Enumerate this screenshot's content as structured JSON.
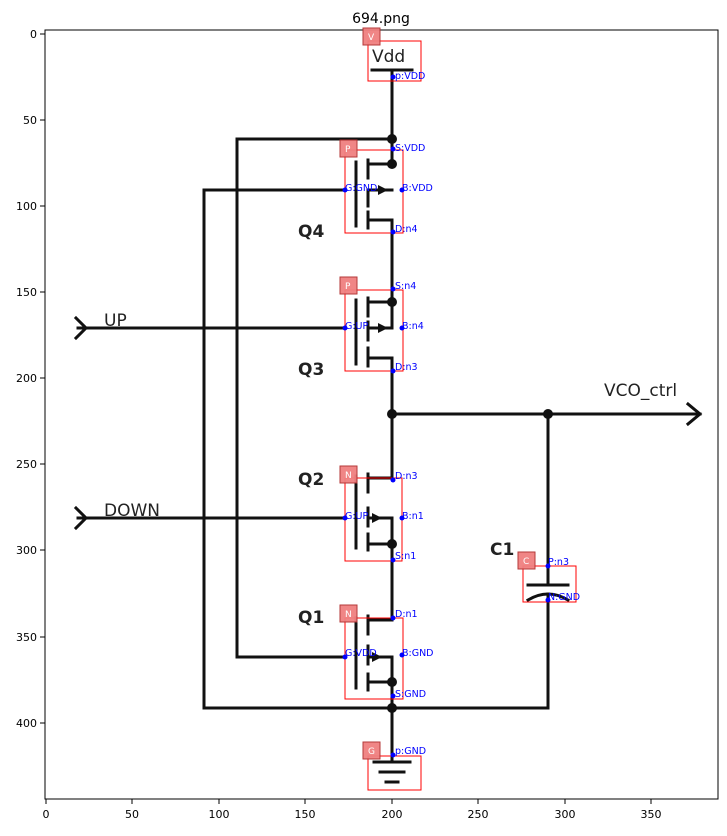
{
  "title": "694.png",
  "axes": {
    "x_ticks": [
      "0",
      "50",
      "100",
      "150",
      "200",
      "250",
      "300",
      "350"
    ],
    "y_ticks": [
      "0",
      "50",
      "100",
      "150",
      "200",
      "250",
      "300",
      "350",
      "400"
    ]
  },
  "labels": {
    "vdd": "Vdd",
    "q4": "Q4",
    "q3": "Q3",
    "q2": "Q2",
    "q1": "Q1",
    "c1": "C1",
    "up": "UP",
    "down": "DOWN",
    "vco": "VCO_ctrl"
  },
  "components": [
    {
      "id": "vdd",
      "tag": "V",
      "pins": [
        "p:VDD"
      ]
    },
    {
      "id": "q4",
      "tag": "P",
      "pins": [
        "S:VDD",
        "G:GND",
        "B:VDD",
        "D:n4"
      ]
    },
    {
      "id": "q3",
      "tag": "P",
      "pins": [
        "S:n4",
        "G:UP",
        "B:n4",
        "D:n3"
      ]
    },
    {
      "id": "q2",
      "tag": "N",
      "pins": [
        "D:n3",
        "G:UP",
        "B:n1",
        "S:n1"
      ]
    },
    {
      "id": "q1",
      "tag": "N",
      "pins": [
        "D:n1",
        "G:VDD",
        "B:GND",
        "S:GND"
      ]
    },
    {
      "id": "c1",
      "tag": "C",
      "pins": [
        "P:n3",
        "N:GND"
      ]
    },
    {
      "id": "gnd",
      "tag": "G",
      "pins": [
        "p:GND"
      ]
    }
  ]
}
